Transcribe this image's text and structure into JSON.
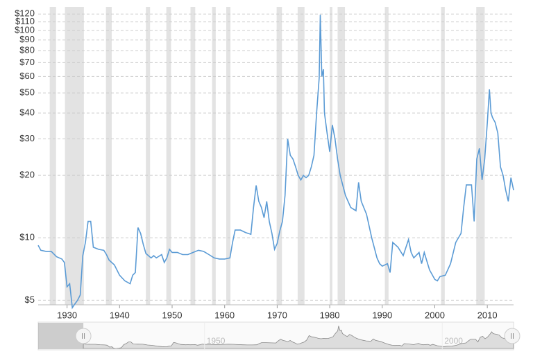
{
  "chart_data": {
    "type": "line",
    "log_y": true,
    "grid": true,
    "xlim": [
      1924.5,
      2015
    ],
    "xticks": [
      1930,
      1940,
      1950,
      1960,
      1970,
      1980,
      1990,
      2000,
      2010
    ],
    "ylim": [
      4.75,
      125
    ],
    "yticks": [
      {
        "value": 5,
        "label": "$5"
      },
      {
        "value": 10,
        "label": "$10"
      },
      {
        "value": 20,
        "label": "$20"
      },
      {
        "value": 30,
        "label": "$30"
      },
      {
        "value": 40,
        "label": "$40"
      },
      {
        "value": 50,
        "label": "$50"
      },
      {
        "value": 60,
        "label": "$60"
      },
      {
        "value": 70,
        "label": "$70"
      },
      {
        "value": 80,
        "label": "$80"
      },
      {
        "value": 90,
        "label": "$90"
      },
      {
        "value": 100,
        "label": "$100"
      },
      {
        "value": 110,
        "label": "$110"
      },
      {
        "value": 120,
        "label": "$120"
      }
    ],
    "recession_color": "#e3e3e3",
    "recessions": [
      [
        1926.7,
        1927.9
      ],
      [
        1929.6,
        1933.2
      ],
      [
        1937.4,
        1938.5
      ],
      [
        1945,
        1945.8
      ],
      [
        1948.9,
        1949.8
      ],
      [
        1953.5,
        1954.4
      ],
      [
        1957.6,
        1958.3
      ],
      [
        1960.3,
        1961.1
      ],
      [
        1969.9,
        1970.9
      ],
      [
        1973.9,
        1975.2
      ],
      [
        1980,
        1980.5
      ],
      [
        1981.5,
        1982.9
      ],
      [
        1990.5,
        1991.2
      ],
      [
        2001.2,
        2001.9
      ],
      [
        2007.9,
        2009.5
      ]
    ],
    "navigator_xlim": [
      1915,
      2015
    ],
    "navigator_ticks": [
      1950,
      2000
    ],
    "series": [
      {
        "color": "#5b9bd5",
        "x": [
          1924.5,
          1925,
          1926,
          1927,
          1928,
          1929,
          1929.5,
          1930,
          1930.5,
          1931,
          1931.5,
          1932,
          1932.5,
          1933,
          1933.5,
          1934,
          1934.5,
          1935,
          1936,
          1937,
          1937.5,
          1938,
          1939,
          1940,
          1941,
          1942,
          1942.5,
          1943,
          1943.5,
          1944,
          1944.5,
          1945,
          1946,
          1946.5,
          1947,
          1948,
          1948.5,
          1949,
          1949.5,
          1950,
          1951,
          1952,
          1953,
          1954,
          1955,
          1956,
          1957,
          1958,
          1959,
          1960,
          1961,
          1961.5,
          1962,
          1963,
          1964,
          1965,
          1965.5,
          1966,
          1966.5,
          1967,
          1967.5,
          1968,
          1968.5,
          1969,
          1969.5,
          1970,
          1970.5,
          1971,
          1971.5,
          1972,
          1972.5,
          1973,
          1973.5,
          1974,
          1974.5,
          1975,
          1975.5,
          1976,
          1976.5,
          1977,
          1977.5,
          1978,
          1978.2,
          1978.5,
          1978.8,
          1979,
          1979.5,
          1980,
          1980.5,
          1981,
          1981.5,
          1982,
          1983,
          1984,
          1985,
          1985.5,
          1986,
          1987,
          1988,
          1989,
          1989.5,
          1990,
          1991,
          1991.5,
          1992,
          1993,
          1994,
          1995,
          1995.5,
          1996,
          1997,
          1997.5,
          1998,
          1999,
          2000,
          2000.5,
          2001,
          2002,
          2003,
          2004,
          2005,
          2005.5,
          2006,
          2007,
          2007.5,
          2008,
          2008.5,
          2009,
          2009.5,
          2010,
          2010.4,
          2010.7,
          2011,
          2011.5,
          2012,
          2012.5,
          2013,
          2013.5,
          2014,
          2014.5,
          2015
        ],
        "values": [
          9.2,
          8.7,
          8.6,
          8.6,
          8.1,
          7.9,
          7.6,
          5.8,
          6.0,
          4.6,
          4.8,
          5.0,
          5.3,
          8.2,
          9.5,
          12.0,
          12.0,
          9.0,
          8.8,
          8.7,
          8.3,
          7.8,
          7.4,
          6.6,
          6.2,
          6.0,
          6.6,
          6.8,
          11.2,
          10.5,
          9.3,
          8.4,
          8.0,
          8.2,
          8.0,
          8.3,
          7.6,
          8.0,
          8.8,
          8.5,
          8.5,
          8.3,
          8.3,
          8.5,
          8.7,
          8.6,
          8.3,
          8.0,
          7.9,
          7.9,
          8.0,
          9.5,
          10.9,
          10.9,
          10.6,
          10.4,
          14.0,
          17.9,
          15.0,
          14.0,
          12.5,
          15.0,
          12.0,
          10.5,
          8.8,
          9.4,
          10.8,
          12.0,
          16.0,
          30.0,
          25.0,
          24.0,
          22.0,
          20.0,
          19.0,
          20.0,
          19.5,
          20.0,
          22.0,
          25.0,
          40.0,
          59.0,
          119.0,
          60.0,
          65.0,
          40.0,
          32.0,
          26.0,
          35.0,
          30.0,
          24.0,
          20.0,
          16.0,
          14.0,
          13.5,
          18.5,
          15.0,
          13.0,
          10.0,
          8.0,
          7.5,
          7.3,
          7.5,
          6.8,
          9.5,
          9.0,
          8.2,
          9.8,
          8.5,
          8.0,
          8.5,
          7.5,
          8.5,
          7.0,
          6.3,
          6.2,
          6.5,
          6.6,
          7.5,
          9.5,
          10.5,
          14.0,
          18.0,
          18.0,
          12.0,
          24.0,
          27.0,
          19.0,
          24.0,
          36.0,
          52.0,
          40.0,
          38.0,
          36.0,
          32.0,
          22.0,
          20.0,
          17.0,
          15.0,
          19.5,
          17.0
        ]
      }
    ]
  }
}
